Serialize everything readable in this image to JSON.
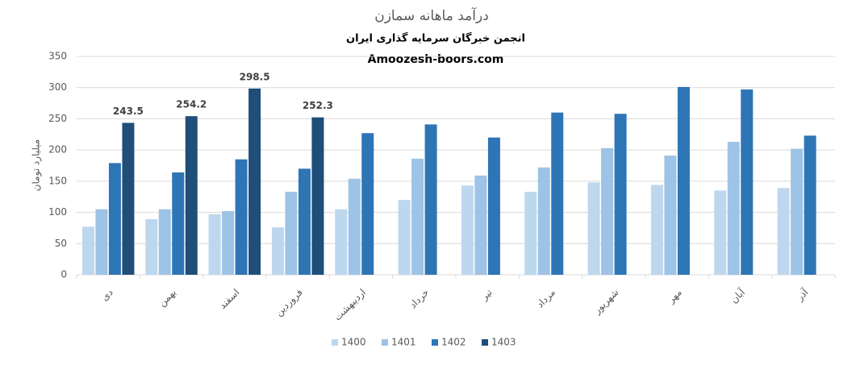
{
  "chart_data": {
    "type": "bar",
    "title": "درآمد ماهانه سمازن",
    "subtitle": "انجمن خبرگان سرمایه گذاری ایران",
    "source": "Amoozesh-boors.com",
    "y_label": "میلیارد تومان",
    "categories": [
      "دی",
      "بهمن",
      "اسفند",
      "فروردین",
      "اردیبهشت",
      "خرداد",
      "تیر",
      "مرداد",
      "شهریور",
      "مهر",
      "آبان",
      "آذر"
    ],
    "series": [
      {
        "name": "1400",
        "color": "#bdd7ee",
        "values": [
          77,
          89,
          97,
          76,
          105,
          120,
          143,
          133,
          148,
          144,
          135,
          139
        ]
      },
      {
        "name": "1401",
        "color": "#9dc3e6",
        "values": [
          105,
          105,
          102,
          133,
          154,
          186,
          159,
          172,
          203,
          191,
          213,
          202
        ]
      },
      {
        "name": "1402",
        "color": "#2e75b6",
        "values": [
          179,
          164,
          185,
          170,
          227,
          241,
          220,
          260,
          258,
          301,
          297,
          223
        ]
      },
      {
        "name": "1403",
        "color": "#1f4e79",
        "values": [
          243.5,
          254.2,
          298.5,
          252.3,
          null,
          null,
          null,
          null,
          null,
          null,
          null,
          null
        ],
        "show_labels": true
      }
    ],
    "ylim": [
      0,
      350
    ],
    "yticks": [
      0,
      50,
      100,
      150,
      200,
      250,
      300,
      350
    ],
    "grid": true,
    "legend": "bottom"
  }
}
